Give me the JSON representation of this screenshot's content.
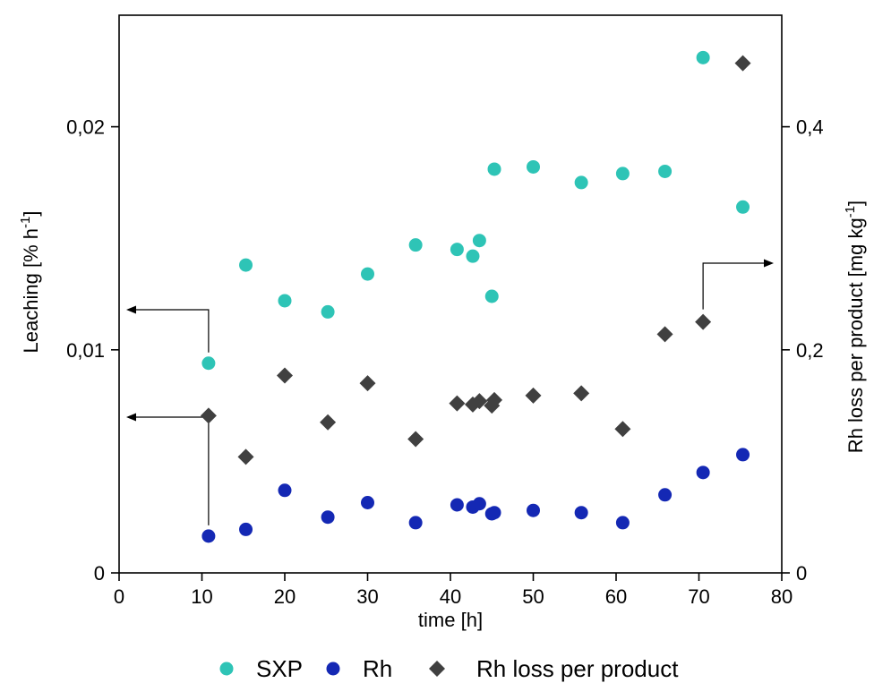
{
  "chart_data": {
    "type": "scatter",
    "xlabel": "time [h]",
    "ylabel_left": {
      "main": "Leaching [% h",
      "sup": "-1",
      "tail": "]"
    },
    "ylabel_right": {
      "main": "Rh loss per product [mg kg",
      "sup": "-1",
      "tail": "]"
    },
    "xlim": [
      0,
      80
    ],
    "ylim_left": [
      0,
      0.025
    ],
    "ylim_right": [
      0,
      0.5
    ],
    "x_ticks": [
      0,
      10,
      20,
      30,
      40,
      50,
      60,
      70,
      80
    ],
    "x_tick_labels": [
      "0",
      "10",
      "20",
      "30",
      "40",
      "50",
      "60",
      "70",
      "80"
    ],
    "y_left_ticks": [
      0,
      0.01,
      0.02
    ],
    "y_left_tick_labels": [
      "0",
      "0,01",
      "0,02"
    ],
    "y_right_ticks": [
      0,
      0.2,
      0.4
    ],
    "y_right_tick_labels": [
      "0",
      "0,2",
      "0,4"
    ],
    "grid": false,
    "legend_position": "bottom",
    "series": [
      {
        "name": "SXP",
        "axis": "left",
        "marker": "circle",
        "color": "#2ec4b6",
        "points": [
          [
            10.8,
            0.0094
          ],
          [
            15.3,
            0.0138
          ],
          [
            20.0,
            0.0122
          ],
          [
            25.2,
            0.0117
          ],
          [
            30.0,
            0.0134
          ],
          [
            35.8,
            0.0147
          ],
          [
            40.8,
            0.0145
          ],
          [
            42.7,
            0.0142
          ],
          [
            43.5,
            0.0149
          ],
          [
            45.0,
            0.0124
          ],
          [
            45.3,
            0.0181
          ],
          [
            50.0,
            0.0182
          ],
          [
            55.8,
            0.0175
          ],
          [
            60.8,
            0.0179
          ],
          [
            65.9,
            0.018
          ],
          [
            70.5,
            0.0231
          ],
          [
            75.3,
            0.0164
          ]
        ]
      },
      {
        "name": "Rh",
        "axis": "left",
        "marker": "circle",
        "color": "#1428b4",
        "points": [
          [
            10.8,
            0.00165
          ],
          [
            15.3,
            0.00195
          ],
          [
            20.0,
            0.0037
          ],
          [
            25.2,
            0.0025
          ],
          [
            30.0,
            0.00315
          ],
          [
            35.8,
            0.00225
          ],
          [
            40.8,
            0.00305
          ],
          [
            42.7,
            0.00295
          ],
          [
            43.5,
            0.0031
          ],
          [
            45.0,
            0.00265
          ],
          [
            45.3,
            0.0027
          ],
          [
            50.0,
            0.0028
          ],
          [
            55.8,
            0.0027
          ],
          [
            60.8,
            0.00225
          ],
          [
            65.9,
            0.0035
          ],
          [
            70.5,
            0.0045
          ],
          [
            75.3,
            0.0053
          ]
        ]
      },
      {
        "name": "Rh loss per product",
        "axis": "right",
        "marker": "diamond",
        "color": "#404040",
        "points": [
          [
            10.8,
            0.141
          ],
          [
            15.3,
            0.104
          ],
          [
            20.0,
            0.177
          ],
          [
            25.2,
            0.135
          ],
          [
            30.0,
            0.17
          ],
          [
            35.8,
            0.12
          ],
          [
            40.8,
            0.152
          ],
          [
            42.7,
            0.151
          ],
          [
            43.5,
            0.154
          ],
          [
            45.0,
            0.15
          ],
          [
            45.3,
            0.155
          ],
          [
            50.0,
            0.159
          ],
          [
            55.8,
            0.161
          ],
          [
            60.8,
            0.129
          ],
          [
            65.9,
            0.214
          ],
          [
            70.5,
            0.225
          ],
          [
            75.3,
            0.457
          ]
        ]
      }
    ]
  }
}
